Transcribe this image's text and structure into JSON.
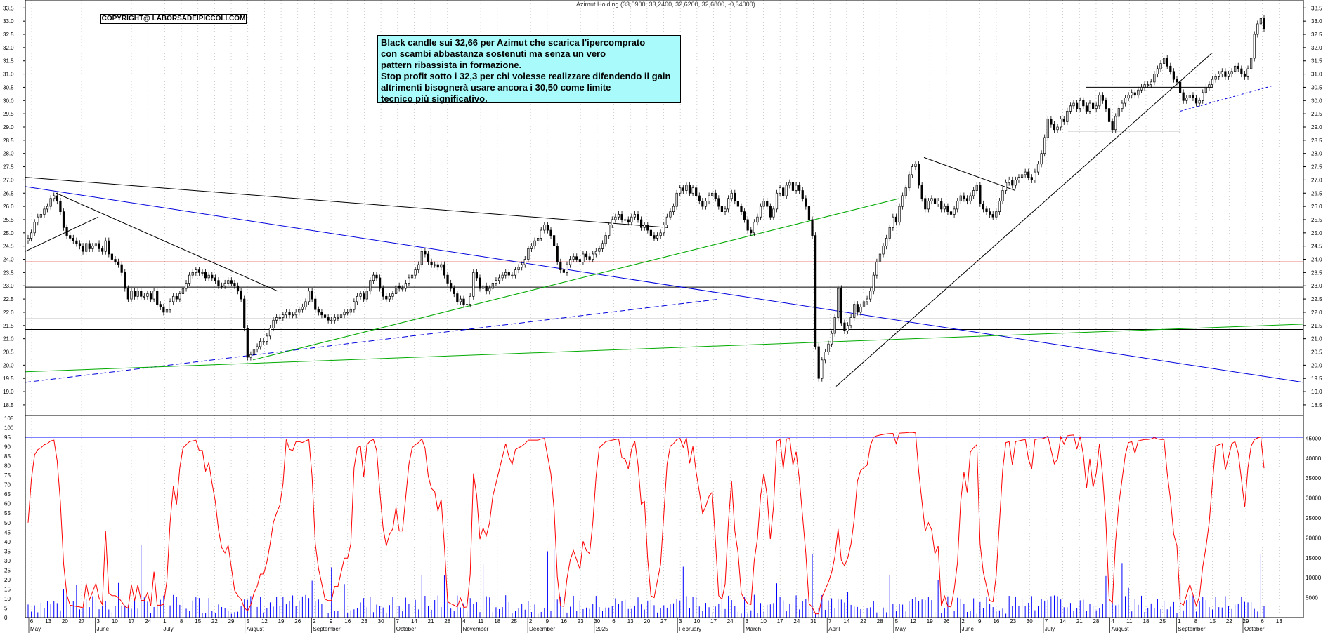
{
  "chart_data": [
    {
      "type": "candlestick",
      "title": "Azimut Holding (33,0900, 33,2400, 32,6200, 32,6800, -0,34000)",
      "ylim": [
        18.1,
        33.8
      ],
      "y_ticks": [
        "18.5",
        "19.0",
        "19.5",
        "20.0",
        "20.5",
        "21.0",
        "21.5",
        "22.0",
        "22.5",
        "23.0",
        "23.5",
        "24.0",
        "24.5",
        "25.0",
        "25.5",
        "26.0",
        "26.5",
        "27.0",
        "27.5",
        "28.0",
        "28.5",
        "29.0",
        "29.5",
        "30.0",
        "30.5",
        "31.0",
        "31.5",
        "32.0",
        "32.5",
        "33.0",
        "33.5"
      ],
      "grid": "vertical dotted weekly",
      "closes": [
        24.8,
        25.0,
        25.4,
        25.6,
        25.7,
        25.9,
        26.0,
        26.3,
        26.4,
        26.2,
        25.8,
        25.2,
        24.9,
        24.8,
        24.7,
        24.6,
        24.5,
        24.3,
        24.6,
        24.4,
        24.5,
        24.6,
        24.4,
        24.3,
        24.7,
        24.2,
        24.0,
        23.9,
        23.8,
        23.5,
        22.9,
        22.5,
        22.8,
        22.6,
        22.8,
        22.6,
        22.6,
        22.7,
        22.5,
        22.8,
        22.3,
        22.2,
        22.0,
        22.1,
        22.4,
        22.6,
        22.5,
        22.7,
        22.9,
        23.1,
        23.4,
        23.5,
        23.6,
        23.5,
        23.5,
        23.3,
        23.4,
        23.3,
        23.2,
        23.0,
        23.0,
        23.1,
        23.2,
        23.1,
        23.0,
        22.8,
        22.5,
        21.4,
        20.3,
        20.4,
        20.6,
        20.7,
        20.9,
        20.9,
        21.1,
        21.4,
        21.7,
        21.8,
        21.8,
        21.9,
        22.0,
        21.9,
        21.9,
        22.0,
        22.1,
        22.2,
        22.4,
        22.8,
        22.5,
        22.1,
        22.0,
        21.9,
        21.8,
        21.7,
        21.7,
        21.8,
        21.8,
        21.9,
        22.0,
        22.0,
        22.1,
        22.4,
        22.6,
        22.7,
        22.5,
        22.8,
        23.2,
        23.4,
        23.3,
        22.9,
        22.6,
        22.5,
        22.6,
        22.7,
        23.0,
        22.9,
        22.9,
        23.1,
        23.3,
        23.4,
        23.6,
        23.8,
        24.3,
        24.2,
        23.9,
        23.8,
        23.8,
        23.7,
        23.8,
        23.4,
        23.1,
        22.9,
        22.7,
        22.4,
        22.5,
        22.3,
        22.3,
        22.6,
        23.5,
        23.3,
        22.9,
        23.0,
        22.8,
        22.9,
        23.1,
        23.2,
        23.3,
        23.4,
        23.5,
        23.4,
        23.4,
        23.6,
        23.7,
        23.8,
        24.0,
        24.4,
        24.5,
        24.7,
        24.8,
        25.1,
        25.3,
        25.1,
        24.9,
        24.5,
        23.9,
        23.6,
        23.5,
        23.8,
        24.0,
        24.1,
        24.0,
        23.9,
        24.2,
        24.1,
        24.0,
        24.2,
        24.3,
        24.4,
        24.6,
        24.9,
        25.3,
        25.5,
        25.6,
        25.7,
        25.5,
        25.5,
        25.4,
        25.6,
        25.7,
        25.5,
        25.2,
        25.3,
        25.1,
        24.9,
        24.8,
        24.9,
        25.0,
        25.3,
        25.6,
        25.8,
        26.0,
        26.5,
        26.7,
        26.6,
        26.8,
        26.5,
        26.7,
        26.4,
        26.2,
        26.0,
        26.2,
        26.4,
        26.5,
        26.3,
        26.0,
        25.8,
        25.9,
        26.3,
        26.5,
        26.2,
        26.0,
        25.8,
        25.5,
        25.1,
        25.0,
        25.4,
        25.6,
        26.0,
        26.2,
        26.0,
        25.6,
        25.9,
        26.5,
        26.7,
        26.4,
        26.8,
        26.9,
        26.6,
        26.8,
        26.6,
        26.3,
        26.0,
        25.5,
        24.9,
        20.7,
        19.5,
        20.2,
        20.5,
        20.8,
        21.2,
        21.8,
        22.9,
        21.6,
        21.3,
        21.5,
        21.8,
        22.3,
        22.0,
        22.2,
        22.4,
        22.5,
        22.8,
        23.4,
        23.9,
        24.2,
        24.5,
        24.8,
        25.2,
        25.6,
        25.4,
        26.0,
        26.4,
        26.7,
        27.2,
        27.5,
        27.6,
        26.8,
        26.3,
        25.9,
        26.2,
        26.3,
        26.1,
        26.2,
        25.9,
        26.0,
        25.8,
        25.7,
        25.9,
        26.2,
        26.4,
        26.3,
        26.2,
        26.4,
        26.6,
        26.8,
        26.1,
        25.9,
        25.8,
        25.7,
        25.6,
        25.8,
        26.2,
        26.6,
        26.9,
        27.0,
        26.8,
        27.0,
        27.1,
        27.2,
        27.3,
        27.1,
        27.0,
        27.3,
        27.6,
        28.0,
        28.6,
        29.3,
        29.1,
        28.9,
        29.0,
        29.3,
        29.2,
        29.6,
        29.8,
        29.9,
        29.7,
        30.0,
        29.8,
        29.6,
        29.9,
        29.7,
        29.8,
        30.2,
        30.0,
        29.7,
        29.2,
        28.9,
        29.4,
        29.7,
        29.9,
        30.1,
        30.2,
        30.3,
        30.2,
        30.4,
        30.5,
        30.6,
        30.6,
        30.7,
        31.0,
        31.2,
        31.4,
        31.6,
        31.3,
        31.1,
        30.8,
        30.7,
        30.3,
        30.0,
        30.1,
        30.2,
        30.1,
        29.9,
        30.0,
        30.3,
        30.5,
        30.6,
        30.8,
        30.9,
        31.0,
        31.1,
        30.9,
        31.0,
        31.1,
        31.3,
        31.2,
        31.0,
        30.9,
        31.2,
        31.6,
        32.5,
        32.9,
        33.1,
        32.7
      ]
    },
    {
      "type": "line+bar",
      "oscillator_name": "",
      "ylim": [
        0,
        105
      ],
      "y_ticks_left": [
        "0",
        "5",
        "10",
        "15",
        "20",
        "25",
        "30",
        "35",
        "40",
        "45",
        "50",
        "55",
        "60",
        "65",
        "70",
        "75",
        "80",
        "85",
        "90",
        "95",
        "100",
        "105"
      ],
      "volume_ticks_right": [
        "5000",
        "10000",
        "15000",
        "20000",
        "25000",
        "30000",
        "35000",
        "40000",
        "45000"
      ],
      "reference_lines": [
        5,
        95
      ],
      "x_months": [
        "May",
        "June",
        "July",
        "August",
        "September",
        "October",
        "November",
        "December",
        "2025",
        "February",
        "March",
        "April",
        "May",
        "June",
        "July",
        "August",
        "September",
        "October"
      ],
      "x_days": [
        "6",
        "13",
        "20",
        "27",
        "3",
        "10",
        "17",
        "24",
        "1",
        "8",
        "15",
        "22",
        "29",
        "5",
        "12",
        "19",
        "26",
        "2",
        "9",
        "16",
        "23",
        "30",
        "7",
        "14",
        "21",
        "28",
        "4",
        "11",
        "18",
        "25",
        "2",
        "9",
        "16",
        "23",
        "30",
        "6",
        "13",
        "20",
        "27",
        "3",
        "10",
        "17",
        "24",
        "3",
        "10",
        "17",
        "24",
        "31",
        "7",
        "14",
        "22",
        "28",
        "5",
        "12",
        "19",
        "26",
        "2",
        "9",
        "16",
        "23",
        "30",
        "7",
        "14",
        "21",
        "28",
        "4",
        "11",
        "18",
        "25",
        "1",
        "8",
        "15",
        "22",
        "29",
        "6",
        "13"
      ]
    }
  ],
  "texts": {
    "copyright": "COPYRIGHT@ LABORSADEIPICCOLI.COM",
    "annotation_lines": [
      "Black candle sui 32,66 per Azimut che scarica l'ipercomprato",
      "con scambi abbastanza sostenuti ma senza un vero",
      "pattern ribassista in formazione.",
      "Stop profit sotto i 32,3 per chi volesse realizzare difendendo il gain",
      "altrimenti bisognerà usare ancora i 30,50 come limite",
      "tecnico più significativo."
    ]
  },
  "colors": {
    "up_candle": "#ffffff",
    "down_candle": "#000000",
    "oscillator": "#ff0000",
    "volume": "#0000ff",
    "annotation_bg": "#a9fafa",
    "green_trend": "#00aa00",
    "blue_trend": "#0000dd",
    "red_support": "#dd0000"
  }
}
